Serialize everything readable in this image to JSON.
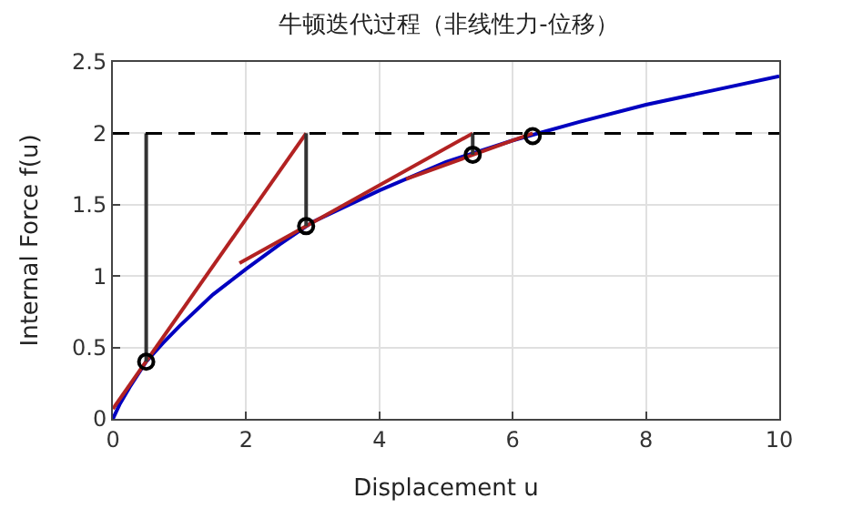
{
  "chart_data": {
    "type": "line",
    "title": "牛顿迭代过程（非线性力-位移）",
    "xlabel": "Displacement u",
    "ylabel": "Internal Force f(u)",
    "xlim": [
      0,
      10
    ],
    "xticks": [
      0,
      2,
      4,
      6,
      8,
      10
    ],
    "ylim": [
      0,
      2.5
    ],
    "yticks": [
      0,
      0.5,
      1,
      1.5,
      2,
      2.5
    ],
    "grid": true,
    "ref_lines": [
      {
        "axis": "y",
        "value": 2,
        "color": "#000000",
        "line_style": "dashed"
      }
    ],
    "series": [
      {
        "color": "#0000c0",
        "marker": "none",
        "x": [
          0,
          0.1,
          0.25,
          0.5,
          0.75,
          1,
          1.5,
          2,
          2.5,
          3,
          4,
          5,
          6,
          7,
          8,
          9,
          10
        ],
        "values": [
          0,
          0.1,
          0.22,
          0.4,
          0.53,
          0.65,
          0.87,
          1.05,
          1.22,
          1.38,
          1.6,
          1.8,
          1.95,
          2.08,
          2.2,
          2.3,
          2.4
        ]
      },
      {
        "color": "#b22222",
        "marker": "none",
        "x": [
          0,
          2.9
        ],
        "values": [
          0.07,
          2.0
        ]
      },
      {
        "color": "#b22222",
        "marker": "none",
        "x": [
          1.9,
          5.4
        ],
        "values": [
          1.09,
          2.0
        ]
      },
      {
        "color": "#b22222",
        "marker": "none",
        "x": [
          4.4,
          6.3
        ],
        "values": [
          1.68,
          2.0
        ]
      },
      {
        "color": "#333333",
        "marker": "none",
        "x": [
          0.5,
          0.5
        ],
        "values": [
          0.4,
          2.0
        ]
      },
      {
        "color": "#333333",
        "marker": "none",
        "x": [
          2.9,
          2.9
        ],
        "values": [
          1.35,
          2.0
        ]
      },
      {
        "color": "#333333",
        "marker": "none",
        "x": [
          5.4,
          5.4
        ],
        "values": [
          1.85,
          2.0
        ]
      },
      {
        "color": "#000000",
        "type": "scatter",
        "marker": "circle",
        "x": [
          0.5,
          2.9,
          5.4,
          6.3
        ],
        "values": [
          0.4,
          1.35,
          1.85,
          1.98
        ]
      }
    ]
  }
}
